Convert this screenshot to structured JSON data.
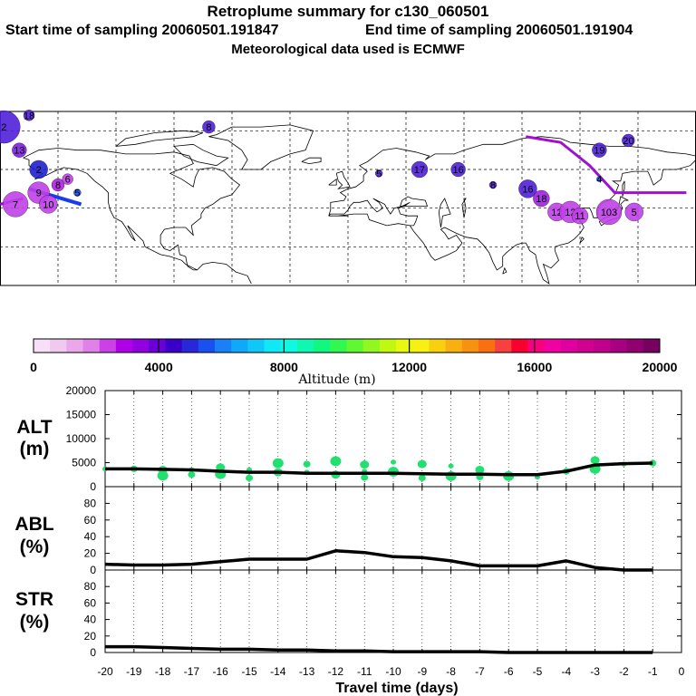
{
  "header": {
    "title": "Retroplume summary for c130_060501",
    "start": "Start time of sampling 20060501.191847",
    "end": "End time of sampling 20060501.191904",
    "met": "Meteorological data used is ECMWF"
  },
  "colorbar": {
    "label": "Altitude (m)",
    "ticks": [
      "0",
      "4000",
      "8000",
      "12000",
      "16000",
      "20000"
    ],
    "colors": [
      "#f7e0f7",
      "#f0c8f0",
      "#eaa8ea",
      "#e080e8",
      "#cc40e8",
      "#b000e8",
      "#9000e0",
      "#6a00d8",
      "#3a00c8",
      "#2828d8",
      "#1a50f0",
      "#1a80f8",
      "#10a8f8",
      "#10c8f8",
      "#10e8f8",
      "#10f8e0",
      "#10f8b0",
      "#10f880",
      "#30f850",
      "#60f830",
      "#90f820",
      "#c0f810",
      "#e8f810",
      "#f8f010",
      "#f8d010",
      "#f8b010",
      "#f89010",
      "#f87010",
      "#f84040",
      "#f80030",
      "#f80080",
      "#f000a0",
      "#e000a0",
      "#d00090",
      "#c0008c",
      "#a80080",
      "#900070",
      "#780060"
    ]
  },
  "map": {
    "clusters": [
      {
        "lon": -178,
        "lat": 82,
        "label": "2"
      },
      {
        "lon": -165,
        "lat": 88,
        "label": "18"
      },
      {
        "lon": -170,
        "lat": 70,
        "label": "13"
      },
      {
        "lon": -160,
        "lat": 60,
        "label": "2"
      },
      {
        "lon": -150,
        "lat": 52,
        "label": "8"
      },
      {
        "lon": -145,
        "lat": 55,
        "label": "6"
      },
      {
        "lon": -160,
        "lat": 48,
        "label": "9"
      },
      {
        "lon": -172,
        "lat": 42,
        "label": "7"
      },
      {
        "lon": -155,
        "lat": 42,
        "label": "10"
      },
      {
        "lon": -140,
        "lat": 48,
        "label": "5"
      },
      {
        "lon": -72,
        "lat": 82,
        "label": "8"
      },
      {
        "lon": 16,
        "lat": 58,
        "label": "5"
      },
      {
        "lon": 37,
        "lat": 60,
        "label": "17"
      },
      {
        "lon": 57,
        "lat": 60,
        "label": "16"
      },
      {
        "lon": 75,
        "lat": 52,
        "label": "8"
      },
      {
        "lon": 93,
        "lat": 50,
        "label": "16"
      },
      {
        "lon": 100,
        "lat": 45,
        "label": "18"
      },
      {
        "lon": 108,
        "lat": 38,
        "label": "12"
      },
      {
        "lon": 115,
        "lat": 38,
        "label": "12"
      },
      {
        "lon": 120,
        "lat": 36,
        "label": "11"
      },
      {
        "lon": 135,
        "lat": 38,
        "label": "103"
      },
      {
        "lon": 148,
        "lat": 38,
        "label": "5"
      },
      {
        "lon": 130,
        "lat": 70,
        "label": "19"
      },
      {
        "lon": 145,
        "lat": 75,
        "label": "20"
      },
      {
        "lon": 130,
        "lat": 55,
        "label": "4"
      }
    ]
  },
  "chart_data": [
    {
      "type": "line",
      "title": "ALT (m)",
      "xlabel": "Travel time (days)",
      "ylabel": "ALT (m)",
      "x": [
        -20,
        -19,
        -18,
        -17,
        -16,
        -15,
        -14,
        -13,
        -12,
        -11,
        -10,
        -9,
        -8,
        -7,
        -6,
        -5,
        -4,
        -3,
        -2,
        -1
      ],
      "values": [
        3700,
        3700,
        3600,
        3500,
        3200,
        3000,
        3000,
        2800,
        2800,
        2800,
        2800,
        2700,
        2600,
        2600,
        2500,
        2500,
        3200,
        4500,
        4800,
        4900
      ],
      "scatter_points": [
        {
          "x": -20,
          "y": 3700
        },
        {
          "x": -19,
          "y": 3700
        },
        {
          "x": -18,
          "y": 3500
        },
        {
          "x": -18,
          "y": 2300
        },
        {
          "x": -17,
          "y": 3500
        },
        {
          "x": -17,
          "y": 2500
        },
        {
          "x": -16,
          "y": 4000
        },
        {
          "x": -16,
          "y": 2600
        },
        {
          "x": -15,
          "y": 3500
        },
        {
          "x": -15,
          "y": 1800
        },
        {
          "x": -14,
          "y": 3000
        },
        {
          "x": -14,
          "y": 4900
        },
        {
          "x": -13,
          "y": 3000
        },
        {
          "x": -13,
          "y": 4700
        },
        {
          "x": -12,
          "y": 2500
        },
        {
          "x": -12,
          "y": 5300
        },
        {
          "x": -11,
          "y": 3200
        },
        {
          "x": -11,
          "y": 1900
        },
        {
          "x": -11,
          "y": 4600
        },
        {
          "x": -10,
          "y": 3100
        },
        {
          "x": -10,
          "y": 5100
        },
        {
          "x": -9,
          "y": 1800
        },
        {
          "x": -9,
          "y": 4700
        },
        {
          "x": -8,
          "y": 2200
        },
        {
          "x": -8,
          "y": 4300
        },
        {
          "x": -7,
          "y": 2000
        },
        {
          "x": -7,
          "y": 3500
        },
        {
          "x": -6,
          "y": 2200
        },
        {
          "x": -5,
          "y": 2000
        },
        {
          "x": -4,
          "y": 3200
        },
        {
          "x": -3,
          "y": 5500
        },
        {
          "x": -3,
          "y": 3700
        },
        {
          "x": -2,
          "y": 4700
        },
        {
          "x": -1,
          "y": 4900
        }
      ],
      "yticks": [
        "0",
        "5000",
        "10000",
        "15000",
        "20000"
      ],
      "ylim": [
        0,
        20000
      ]
    },
    {
      "type": "line",
      "title": "ABL (%)",
      "ylabel": "ABL (%)",
      "x": [
        -20,
        -19,
        -18,
        -17,
        -16,
        -15,
        -14,
        -13,
        -12,
        -11,
        -10,
        -9,
        -8,
        -7,
        -6,
        -5,
        -4,
        -3,
        -2,
        -1
      ],
      "values": [
        7,
        6,
        6,
        7,
        10,
        13,
        13,
        13,
        23,
        21,
        16,
        15,
        11,
        5,
        5,
        5,
        11,
        3,
        0,
        0
      ],
      "yticks": [
        "0",
        "20",
        "40",
        "60",
        "80"
      ],
      "ylim": [
        0,
        100
      ]
    },
    {
      "type": "line",
      "title": "STR (%)",
      "ylabel": "STR (%)",
      "x": [
        -20,
        -19,
        -18,
        -17,
        -16,
        -15,
        -14,
        -13,
        -12,
        -11,
        -10,
        -9,
        -8,
        -7,
        -6,
        -5,
        -4,
        -3,
        -2,
        -1
      ],
      "values": [
        7,
        7,
        6,
        5,
        4,
        4,
        3,
        3,
        2,
        2,
        1,
        1,
        1,
        1,
        0,
        0,
        0,
        0,
        0,
        0
      ],
      "yticks": [
        "0",
        "20",
        "40",
        "60",
        "80"
      ],
      "ylim": [
        0,
        100
      ]
    }
  ],
  "xaxis": {
    "ticks": [
      "-20",
      "-19",
      "-18",
      "-17",
      "-16",
      "-15",
      "-14",
      "-13",
      "-12",
      "-11",
      "-10",
      "-9",
      "-8",
      "-7",
      "-6",
      "-5",
      "-4",
      "-3",
      "-2",
      "-1",
      "0"
    ],
    "label": "Travel time (days)"
  }
}
